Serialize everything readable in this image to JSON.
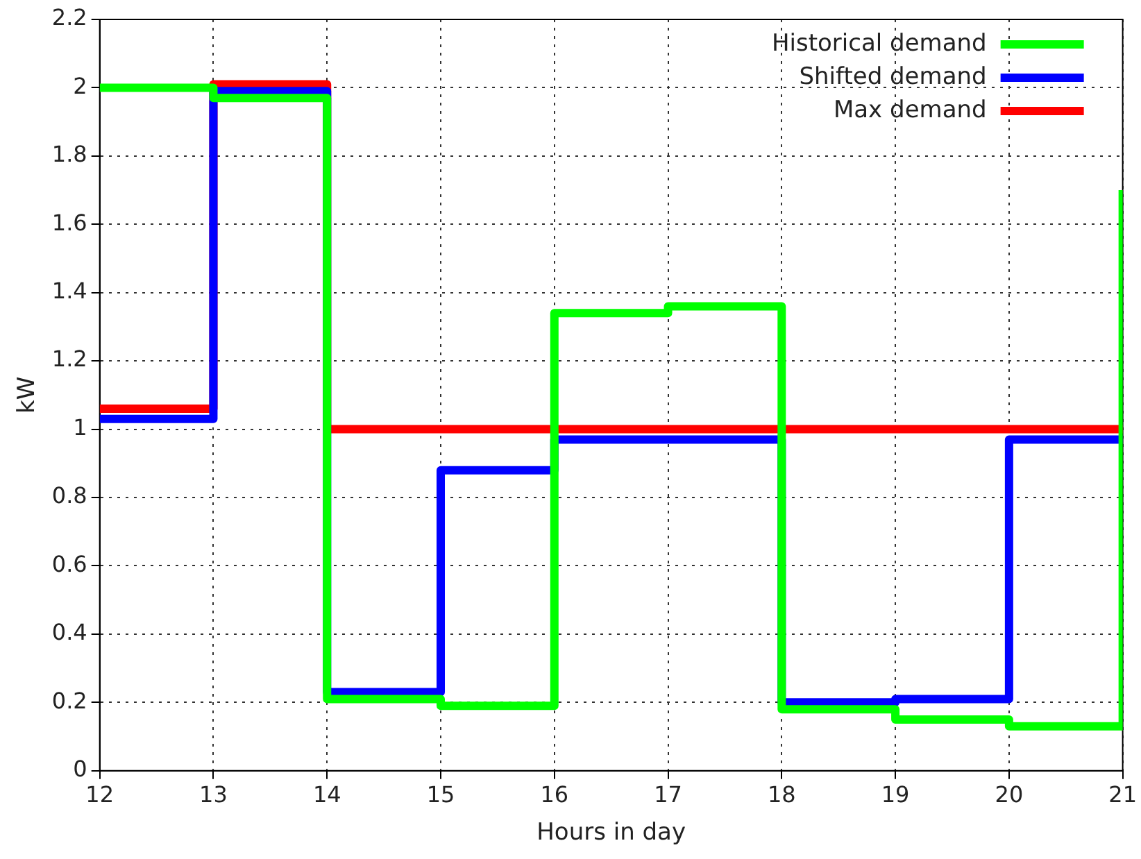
{
  "chart_data": {
    "type": "step",
    "xlabel": "Hours in day",
    "ylabel": "kW",
    "x": [
      12,
      13,
      14,
      15,
      16,
      17,
      18,
      19,
      20,
      21
    ],
    "series": [
      {
        "name": "Historical demand",
        "color": "#00ff00",
        "values": [
          2.0,
          1.97,
          0.21,
          0.19,
          1.34,
          1.36,
          0.18,
          0.15,
          0.13,
          1.7
        ]
      },
      {
        "name": "Shifted demand",
        "color": "#0000ff",
        "values": [
          1.03,
          1.99,
          0.23,
          0.88,
          0.97,
          0.97,
          0.2,
          0.21,
          0.97,
          0.97
        ]
      },
      {
        "name": "Max demand",
        "color": "#ff0000",
        "values": [
          1.06,
          2.01,
          1.0,
          1.0,
          1.0,
          1.0,
          1.0,
          1.0,
          1.0,
          1.0
        ]
      }
    ],
    "xlim": [
      12,
      21
    ],
    "xticks": [
      12,
      13,
      14,
      15,
      16,
      17,
      18,
      19,
      20,
      21
    ],
    "ylim": [
      0,
      2.2
    ],
    "yticks": [
      0,
      0.2,
      0.4,
      0.6,
      0.8,
      1,
      1.2,
      1.4,
      1.6,
      1.8,
      2,
      2.2
    ],
    "grid": true,
    "legend": "top right",
    "line_style": "solid",
    "marker": "none"
  }
}
